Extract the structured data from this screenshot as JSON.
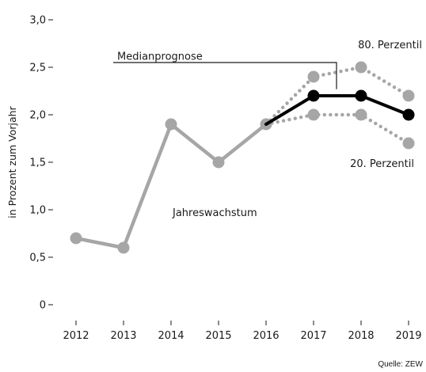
{
  "chart_data": {
    "type": "line",
    "ylabel": "in Prozent zum Vorjahr",
    "ylim": [
      0,
      3.0
    ],
    "yticks": [
      0,
      0.5,
      1.0,
      1.5,
      2.0,
      2.5,
      3.0
    ],
    "ytick_labels": [
      "0",
      "0,5",
      "1,0",
      "1,5",
      "2,0",
      "2,5",
      "3,0"
    ],
    "categories": [
      "2012",
      "2013",
      "2014",
      "2015",
      "2016",
      "2017",
      "2018",
      "2019"
    ],
    "grid": false,
    "series": [
      {
        "name": "Jahreswachstum",
        "x": [
          "2012",
          "2013",
          "2014",
          "2015",
          "2016"
        ],
        "values": [
          0.7,
          0.6,
          1.9,
          1.5,
          1.9
        ],
        "color": "#a6a6a6",
        "style": "solid"
      },
      {
        "name": "Medianprognose",
        "x": [
          "2016",
          "2017",
          "2018",
          "2019"
        ],
        "values": [
          1.9,
          2.2,
          2.2,
          2.0
        ],
        "color": "#000000",
        "style": "solid"
      },
      {
        "name": "80. Perzentil",
        "x": [
          "2016",
          "2017",
          "2018",
          "2019"
        ],
        "values": [
          1.9,
          2.4,
          2.5,
          2.2
        ],
        "color": "#a6a6a6",
        "style": "dotted"
      },
      {
        "name": "20. Perzentil",
        "x": [
          "2016",
          "2017",
          "2018",
          "2019"
        ],
        "values": [
          1.9,
          2.0,
          2.0,
          1.7
        ],
        "color": "#a6a6a6",
        "style": "dotted"
      }
    ],
    "annotations": {
      "median": "Medianprognose",
      "p80": "80. Perzentil",
      "p20": "20. Perzentil",
      "growth": "Jahreswachstum"
    },
    "source": "Quelle: ZEW"
  }
}
